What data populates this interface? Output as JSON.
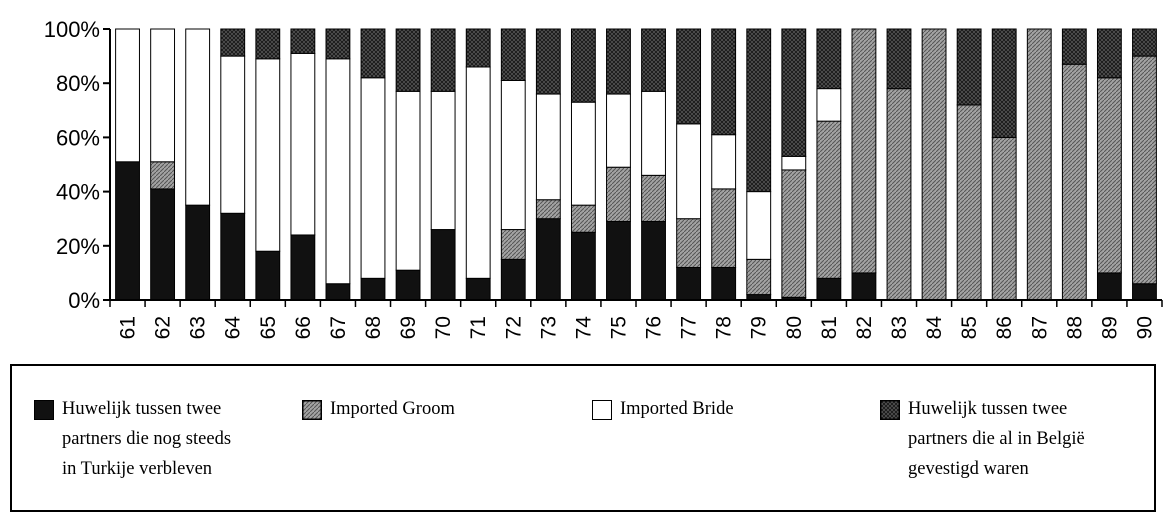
{
  "chart_data": {
    "type": "bar",
    "stacked": true,
    "normalized": true,
    "categories": [
      "61",
      "62",
      "63",
      "64",
      "65",
      "66",
      "67",
      "68",
      "69",
      "70",
      "71",
      "72",
      "73",
      "74",
      "75",
      "76",
      "77",
      "78",
      "79",
      "80",
      "81",
      "82",
      "83",
      "84",
      "85",
      "86",
      "87",
      "88",
      "89",
      "90"
    ],
    "y_ticks": [
      "0%",
      "20%",
      "40%",
      "60%",
      "80%",
      "100%"
    ],
    "ylim": [
      0,
      100
    ],
    "series": [
      {
        "name": "Huwelijk tussen twee partners die nog steeds in Turkije verbleven",
        "pattern": "solid-black",
        "values": [
          51,
          41,
          35,
          32,
          18,
          24,
          6,
          8,
          11,
          26,
          8,
          15,
          30,
          25,
          29,
          29,
          12,
          12,
          2,
          1,
          8,
          10,
          0,
          0,
          0,
          0,
          0,
          0,
          10,
          6
        ]
      },
      {
        "name": "Imported Groom",
        "pattern": "grey-hatch",
        "values": [
          0,
          10,
          0,
          0,
          0,
          0,
          0,
          0,
          0,
          0,
          0,
          11,
          7,
          10,
          20,
          17,
          18,
          29,
          13,
          47,
          58,
          90,
          78,
          100,
          72,
          60,
          100,
          87,
          72,
          84
        ]
      },
      {
        "name": "Imported Bride",
        "pattern": "white",
        "values": [
          49,
          49,
          65,
          58,
          71,
          67,
          83,
          74,
          66,
          51,
          78,
          55,
          39,
          38,
          27,
          31,
          35,
          20,
          25,
          5,
          12,
          0,
          0,
          0,
          0,
          0,
          0,
          0,
          0,
          0
        ]
      },
      {
        "name": "Huwelijk tussen twee partners die al in België gevestigd waren",
        "pattern": "dark-crosshatch",
        "values": [
          0,
          0,
          0,
          10,
          11,
          9,
          11,
          18,
          23,
          23,
          14,
          19,
          24,
          27,
          24,
          23,
          35,
          39,
          60,
          47,
          22,
          0,
          22,
          0,
          28,
          40,
          0,
          13,
          18,
          10
        ]
      }
    ],
    "legend_position": "bottom",
    "grid": false,
    "xlabel": "",
    "ylabel": ""
  },
  "legend": {
    "items": [
      {
        "label": "Huwelijk tussen twee\npartners die nog steeds\nin Turkije verbleven",
        "pattern": "solid-black"
      },
      {
        "label": "Imported Groom",
        "pattern": "grey-hatch"
      },
      {
        "label": "Imported Bride",
        "pattern": "white"
      },
      {
        "label": "Huwelijk tussen twee\npartners die al in België\ngevestigd waren",
        "pattern": "dark-crosshatch"
      }
    ]
  },
  "colors": {
    "solid-black": "#111111",
    "grey-hatch": "#8a8a8a",
    "white": "#ffffff",
    "dark-crosshatch": "#3a3a3a"
  }
}
